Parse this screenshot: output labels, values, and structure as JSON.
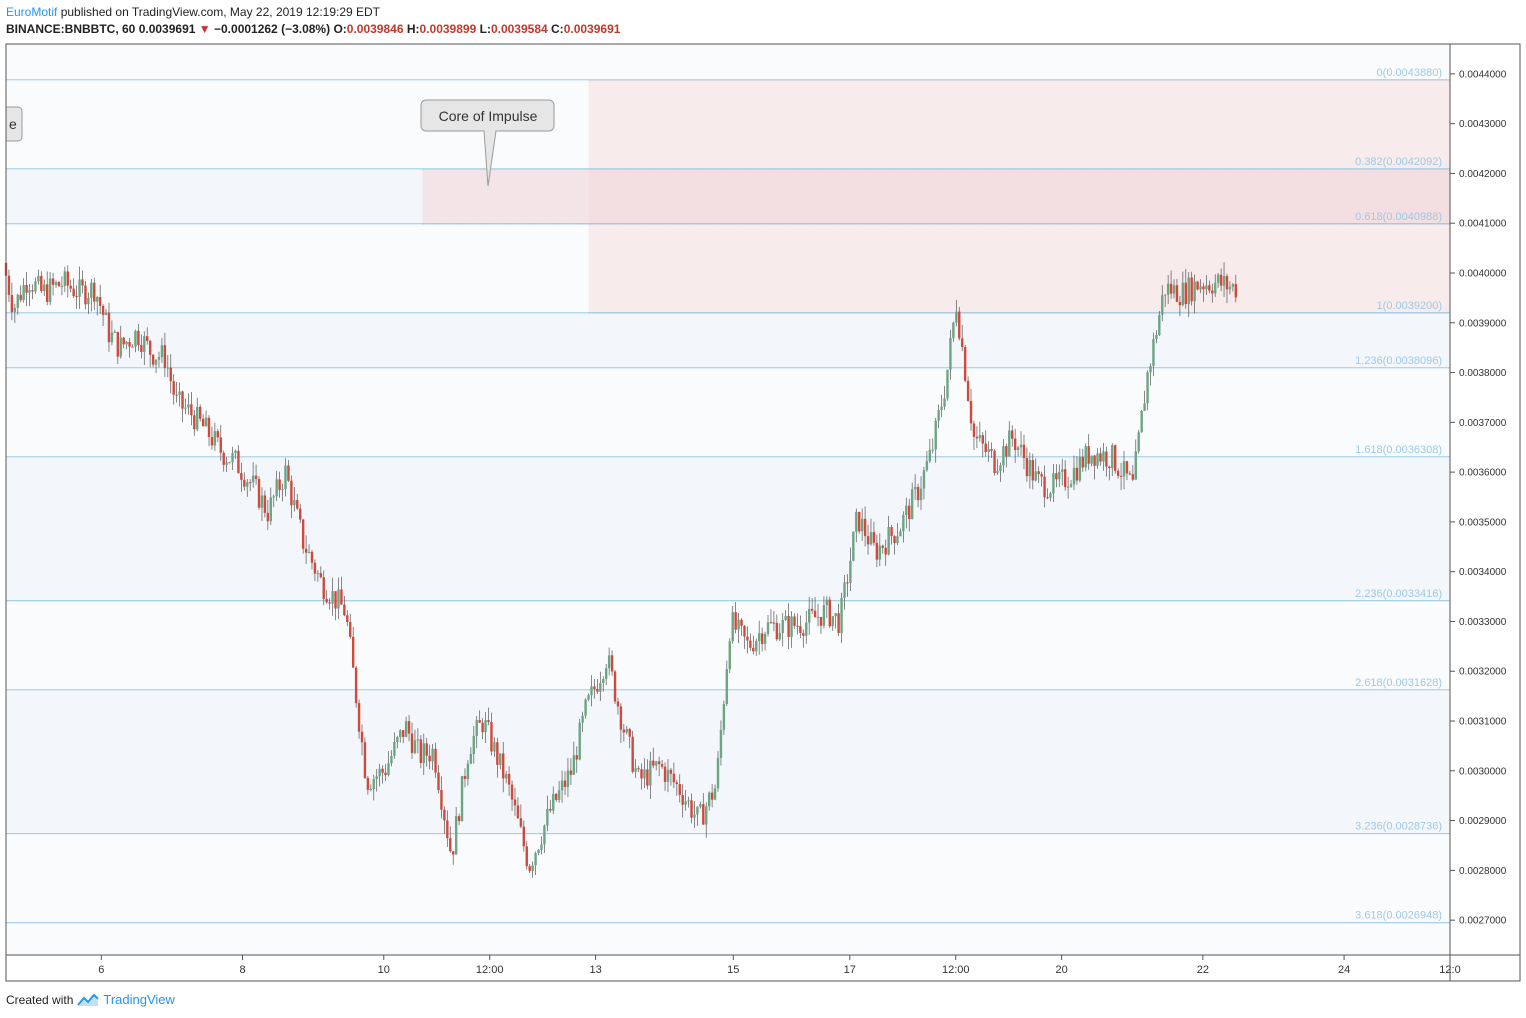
{
  "header": {
    "author": "EuroMotif",
    "published": "published on TradingView.com, May 22, 2019 12:19:29 EDT",
    "symbol": "BINANCE:BNBBTC, 60",
    "last": "0.0039691",
    "change": "−0.0001262 (−3.08%)",
    "o_label": "O:",
    "o": "0.0039846",
    "h_label": "H:",
    "h": "0.0039899",
    "l_label": "L:",
    "l": "0.0039584",
    "c_label": "C:",
    "c": "0.0039691"
  },
  "footer": {
    "created": "Created with",
    "brand": "TradingView"
  },
  "annotations": {
    "core": "Core of Impulse",
    "left_cut": "e"
  },
  "colors": {
    "up": "#6ba583",
    "down": "#d0493b",
    "fib_line": "#8fc2e0",
    "fib_label": "#9ec9e6",
    "zone_fill": "#f3d6d8"
  },
  "chart_data": {
    "type": "candlestick",
    "symbol": "BINANCE:BNBBTC",
    "interval": "60",
    "ylim": [
      0.00263,
      0.00446
    ],
    "y_ticks": [
      "0.0027000",
      "0.0028000",
      "0.0029000",
      "0.0030000",
      "0.0031000",
      "0.0032000",
      "0.0033000",
      "0.0034000",
      "0.0035000",
      "0.0036000",
      "0.0037000",
      "0.0038000",
      "0.0039000",
      "0.0040000",
      "0.0041000",
      "0.0042000",
      "0.0043000",
      "0.0044000"
    ],
    "x_ticks": [
      {
        "label": "6",
        "t": 1.35
      },
      {
        "label": "8",
        "t": 3.35
      },
      {
        "label": "10",
        "t": 5.35
      },
      {
        "label": "12:00",
        "t": 6.85
      },
      {
        "label": "13",
        "t": 8.35
      },
      {
        "label": "15",
        "t": 10.3
      },
      {
        "label": "17",
        "t": 11.95
      },
      {
        "label": "12:00",
        "t": 13.45
      },
      {
        "label": "20",
        "t": 14.95
      },
      {
        "label": "22",
        "t": 16.95
      },
      {
        "label": "24",
        "t": 18.95
      },
      {
        "label": "12:0",
        "t": 20.45
      }
    ],
    "fib_levels": [
      {
        "ratio": "0",
        "price": 0.004388,
        "label": "0(0.0043880)"
      },
      {
        "ratio": "0.382",
        "price": 0.0042092,
        "label": "0.382(0.0042092)"
      },
      {
        "ratio": "0.618",
        "price": 0.0040988,
        "label": "0.618(0.0040988)"
      },
      {
        "ratio": "1",
        "price": 0.00392,
        "label": "1(0.0039200)"
      },
      {
        "ratio": "1.236",
        "price": 0.0038096,
        "label": "1.236(0.0038096)"
      },
      {
        "ratio": "1.618",
        "price": 0.0036308,
        "label": "1.618(0.0036308)"
      },
      {
        "ratio": "2.236",
        "price": 0.0033416,
        "label": "2.236(0.0033416)"
      },
      {
        "ratio": "2.618",
        "price": 0.0031628,
        "label": "2.618(0.0031628)"
      },
      {
        "ratio": "3.236",
        "price": 0.0028736,
        "label": "3.236(0.0028736)"
      },
      {
        "ratio": "3.618",
        "price": 0.0026948,
        "label": "3.618(0.0026948)"
      }
    ],
    "zones": [
      {
        "t_from": 8.25,
        "t_to": 20.45,
        "p_from": 0.00392,
        "p_to": 0.004388
      },
      {
        "t_from": 5.9,
        "t_to": 20.45,
        "p_from": 0.0040988,
        "p_to": 0.0042092
      }
    ],
    "path": [
      [
        0.0,
        0.00402
      ],
      [
        0.15,
        0.00393
      ],
      [
        0.35,
        0.00399
      ],
      [
        0.55,
        0.00396
      ],
      [
        0.85,
        0.00398
      ],
      [
        1.1,
        0.00396
      ],
      [
        1.3,
        0.00397
      ],
      [
        1.5,
        0.00388
      ],
      [
        1.65,
        0.00385
      ],
      [
        1.9,
        0.00388
      ],
      [
        2.1,
        0.00384
      ],
      [
        2.3,
        0.00383
      ],
      [
        2.45,
        0.00374
      ],
      [
        2.65,
        0.00372
      ],
      [
        2.9,
        0.00368
      ],
      [
        3.1,
        0.00364
      ],
      [
        3.3,
        0.00362
      ],
      [
        3.55,
        0.00357
      ],
      [
        3.75,
        0.00352
      ],
      [
        4.0,
        0.0036
      ],
      [
        4.25,
        0.00346
      ],
      [
        4.5,
        0.00338
      ],
      [
        4.85,
        0.00332
      ],
      [
        5.15,
        0.00298
      ],
      [
        5.4,
        0.003
      ],
      [
        5.7,
        0.00309
      ],
      [
        5.9,
        0.00303
      ],
      [
        6.1,
        0.00304
      ],
      [
        6.35,
        0.00283
      ],
      [
        6.6,
        0.00305
      ],
      [
        6.8,
        0.0031
      ],
      [
        7.15,
        0.00297
      ],
      [
        7.45,
        0.00281
      ],
      [
        7.75,
        0.00292
      ],
      [
        8.05,
        0.003
      ],
      [
        8.25,
        0.00312
      ],
      [
        8.55,
        0.00323
      ],
      [
        8.8,
        0.00308
      ],
      [
        9.0,
        0.00298
      ],
      [
        9.3,
        0.00301
      ],
      [
        9.6,
        0.00296
      ],
      [
        9.85,
        0.0029
      ],
      [
        10.1,
        0.00297
      ],
      [
        10.3,
        0.0033
      ],
      [
        10.55,
        0.00325
      ],
      [
        10.8,
        0.00329
      ],
      [
        11.1,
        0.00329
      ],
      [
        11.4,
        0.0033
      ],
      [
        11.65,
        0.00332
      ],
      [
        11.85,
        0.0033
      ],
      [
        12.1,
        0.00351
      ],
      [
        12.35,
        0.00344
      ],
      [
        12.7,
        0.00349
      ],
      [
        12.95,
        0.00356
      ],
      [
        13.15,
        0.00364
      ],
      [
        13.35,
        0.00378
      ],
      [
        13.5,
        0.00394
      ],
      [
        13.75,
        0.00367
      ],
      [
        14.05,
        0.00362
      ],
      [
        14.3,
        0.00367
      ],
      [
        14.65,
        0.00358
      ],
      [
        14.9,
        0.00357
      ],
      [
        15.15,
        0.0036
      ],
      [
        15.4,
        0.00364
      ],
      [
        15.7,
        0.00363
      ],
      [
        16.0,
        0.00357
      ],
      [
        16.2,
        0.00379
      ],
      [
        16.45,
        0.00397
      ],
      [
        16.7,
        0.00396
      ],
      [
        16.95,
        0.00398
      ],
      [
        17.2,
        0.00398
      ],
      [
        17.45,
        0.00397
      ]
    ]
  }
}
